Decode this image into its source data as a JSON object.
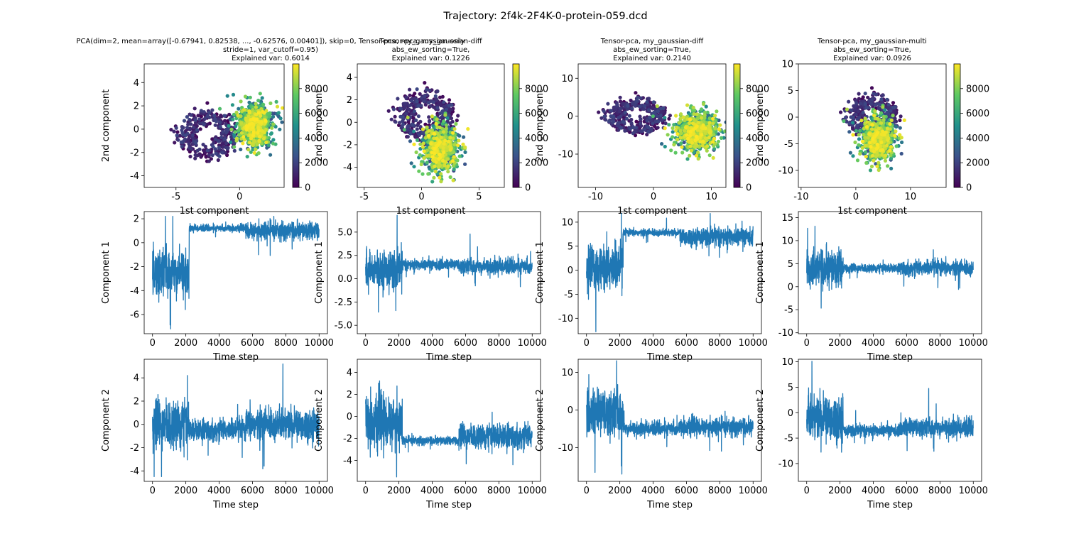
{
  "suptitle": "Trajectory: 2f4k-2F4K-0-protein-059.dcd",
  "colorbar": {
    "ticks": [
      "0",
      "2000",
      "4000",
      "6000",
      "8000"
    ],
    "range": [
      0,
      9999
    ],
    "colormap": "viridis",
    "colors": [
      "#440154",
      "#3b528b",
      "#21918c",
      "#5ec962",
      "#fde725"
    ]
  },
  "series_color": "#1f77b4",
  "columns": [
    {
      "title_lines": [
        "PCA(dim=2, mean=array([-0.67941,  0.82538, ..., -0.62576,  0.00401]), skip=0, Tensor-pca, my_gaussian-only",
        "stride=1, var_cutoff=0.95)",
        "Explained var: 0.6014"
      ],
      "scatter": {
        "xlabel": "1st component",
        "ylabel": "2nd component",
        "xlim": [
          -7.5,
          3.5
        ],
        "ylim": [
          -5,
          5.6
        ],
        "xticks": [
          "-5",
          "0"
        ],
        "yticks": [
          "-4",
          "-2",
          "0",
          "2",
          "4"
        ],
        "xtick_values": [
          -5,
          0
        ],
        "ytick_values": [
          -4,
          -2,
          0,
          2,
          4
        ]
      },
      "comp1": {
        "ylabel": "Component 1",
        "ylim": [
          -7.6,
          2.6
        ],
        "yticks": [
          "-6",
          "-4",
          "-2",
          "0",
          "2"
        ],
        "ytick_values": [
          -6,
          -4,
          -2,
          0,
          2
        ]
      },
      "comp2": {
        "ylabel": "Component 2",
        "ylim": [
          -4.9,
          5.6
        ],
        "yticks": [
          "-4",
          "-2",
          "0",
          "2",
          "4"
        ],
        "ytick_values": [
          -4,
          -2,
          0,
          2,
          4
        ]
      }
    },
    {
      "title_lines": [
        "Tensor-pca, my_gaussian-diff",
        "abs_ew_sorting=True,",
        "Explained var: 0.1226"
      ],
      "scatter": {
        "xlabel": "1st component",
        "ylabel": "2nd component",
        "xlim": [
          -5.6,
          7.2
        ],
        "ylim": [
          -5.8,
          5.2
        ],
        "xticks": [
          "-5",
          "0",
          "5"
        ],
        "yticks": [
          "-4",
          "-2",
          "0",
          "2",
          "4"
        ],
        "xtick_values": [
          -5,
          0,
          5
        ],
        "ytick_values": [
          -4,
          -2,
          0,
          2,
          4
        ]
      },
      "comp1": {
        "ylabel": "Component 1",
        "ylim": [
          -5.9,
          7.2
        ],
        "yticks": [
          "-5.0",
          "-2.5",
          "0.0",
          "2.5",
          "5.0"
        ],
        "ytick_values": [
          -5,
          -2.5,
          0,
          2.5,
          5
        ]
      },
      "comp2": {
        "ylabel": "Component 2",
        "ylim": [
          -5.9,
          5.2
        ],
        "yticks": [
          "-4",
          "-2",
          "0",
          "2",
          "4"
        ],
        "ytick_values": [
          -4,
          -2,
          0,
          2,
          4
        ]
      }
    },
    {
      "title_lines": [
        "Tensor-pca, my_gaussian-diff",
        "abs_ew_sorting=True,",
        "Explained var: 0.2140"
      ],
      "scatter": {
        "xlabel": "1st component",
        "ylabel": "2nd component",
        "xlim": [
          -13,
          12.5
        ],
        "ylim": [
          -18.8,
          13.8
        ],
        "xticks": [
          "-10",
          "0",
          "10"
        ],
        "yticks": [
          "-10",
          "0",
          "10"
        ],
        "xtick_values": [
          -10,
          0,
          10
        ],
        "ytick_values": [
          -10,
          0,
          10
        ]
      },
      "comp1": {
        "ylabel": "Component 1",
        "ylim": [
          -13.2,
          12.2
        ],
        "yticks": [
          "-10",
          "-5",
          "0",
          "5",
          "10"
        ],
        "ytick_values": [
          -10,
          -5,
          0,
          5,
          10
        ]
      },
      "comp2": {
        "ylabel": "Component 2",
        "ylim": [
          -19,
          13.5
        ],
        "yticks": [
          "-10",
          "0",
          "10"
        ],
        "ytick_values": [
          -10,
          0,
          10
        ]
      }
    },
    {
      "title_lines": [
        "Tensor-pca, my_gaussian-multi",
        "abs_ew_sorting=True,",
        "Explained var: 0.0926"
      ],
      "scatter": {
        "xlabel": "1st component",
        "ylabel": "2nd component",
        "xlim": [
          -10.5,
          16.5
        ],
        "ylim": [
          -13.2,
          10
        ],
        "xticks": [
          "-10",
          "0",
          "10"
        ],
        "yticks": [
          "-10",
          "-5",
          "0",
          "5",
          "10"
        ],
        "xtick_values": [
          -10,
          0,
          10
        ],
        "ytick_values": [
          -10,
          -5,
          0,
          5,
          10
        ]
      },
      "comp1": {
        "ylabel": "Component 1",
        "ylim": [
          -10.2,
          16.3
        ],
        "yticks": [
          "-10",
          "-5",
          "0",
          "5",
          "10",
          "15"
        ],
        "ytick_values": [
          -10,
          -5,
          0,
          5,
          10,
          15
        ]
      },
      "comp2": {
        "ylabel": "Component 2",
        "ylim": [
          -13.5,
          10.5
        ],
        "yticks": [
          "-10",
          "-5",
          "0",
          "5",
          "10"
        ],
        "ytick_values": [
          -10,
          -5,
          0,
          5,
          10
        ]
      }
    }
  ],
  "time_axis": {
    "xlabel": "Time step",
    "xticks": [
      "0",
      "2000",
      "4000",
      "6000",
      "8000",
      "10000"
    ],
    "xtick_values": [
      0,
      2000,
      4000,
      6000,
      8000,
      10000
    ],
    "xlim": [
      -500,
      10500
    ]
  },
  "chart_data": [
    {
      "type": "scatter",
      "panel": "pca-scatter",
      "title": "Explained var: 0.6014",
      "xlabel": "1st component",
      "ylabel": "2nd component",
      "xlim": [
        -7.5,
        3.5
      ],
      "ylim": [
        -5,
        5.6
      ],
      "color_by": "time step (0–9999)",
      "clusters": [
        {
          "center": [
            -2.5,
            -0.5
          ],
          "spread": 2.0,
          "time_range": [
            0,
            2200
          ]
        },
        {
          "center": [
            1.2,
            0.3
          ],
          "spread": 0.8,
          "time_range": [
            2200,
            10000
          ]
        }
      ]
    },
    {
      "type": "scatter",
      "panel": "tensor-pca-diff-scatter",
      "title": "Explained var: 0.1226",
      "xlabel": "1st component",
      "ylabel": "2nd component",
      "xlim": [
        -5.6,
        7.2
      ],
      "ylim": [
        -5.8,
        5.2
      ],
      "color_by": "time step (0–9999)",
      "clusters": [
        {
          "center": [
            0.3,
            0.5
          ],
          "spread": 2.2,
          "time_range": [
            0,
            2200
          ]
        },
        {
          "center": [
            1.6,
            -2.3
          ],
          "spread": 0.9,
          "time_range": [
            2200,
            10000
          ]
        }
      ]
    },
    {
      "type": "scatter",
      "panel": "tensor-pca-diff2-scatter",
      "title": "Explained var: 0.2140",
      "xlabel": "1st component",
      "ylabel": "2nd component",
      "xlim": [
        -13,
        12.5
      ],
      "ylim": [
        -18.8,
        13.8
      ],
      "color_by": "time step (0–9999)",
      "clusters": [
        {
          "center": [
            -3,
            0
          ],
          "spread": 4.5,
          "time_range": [
            0,
            2200
          ]
        },
        {
          "center": [
            7.5,
            -4
          ],
          "spread": 2.2,
          "time_range": [
            2200,
            10000
          ]
        }
      ]
    },
    {
      "type": "scatter",
      "panel": "tensor-pca-multi-scatter",
      "title": "Explained var: 0.0926",
      "xlabel": "1st component",
      "ylabel": "2nd component",
      "xlim": [
        -10.5,
        16.5
      ],
      "ylim": [
        -13.2,
        10
      ],
      "color_by": "time step (0–9999)",
      "clusters": [
        {
          "center": [
            3,
            0
          ],
          "spread": 4.0,
          "time_range": [
            0,
            2200
          ]
        },
        {
          "center": [
            4,
            -4
          ],
          "spread": 1.8,
          "time_range": [
            2200,
            10000
          ]
        }
      ]
    },
    {
      "type": "line",
      "panel": "component-1-traces",
      "xlabel": "Time step",
      "ylabel": "Component 1",
      "x_range": [
        0,
        10000
      ],
      "series": [
        {
          "segments": [
            {
              "from": 0,
              "to": 2200,
              "mean": -2.5,
              "amp": 2.2
            },
            {
              "from": 2200,
              "to": 5600,
              "mean": 1.2,
              "amp": 0.3
            },
            {
              "from": 5600,
              "to": 10000,
              "mean": 1.0,
              "amp": 0.8
            }
          ]
        },
        {
          "segments": [
            {
              "from": 0,
              "to": 2200,
              "mean": 1.0,
              "amp": 2.2
            },
            {
              "from": 2200,
              "to": 5600,
              "mean": 1.5,
              "amp": 0.6
            },
            {
              "from": 5600,
              "to": 10000,
              "mean": 1.3,
              "amp": 0.9
            }
          ]
        },
        {
          "segments": [
            {
              "from": 0,
              "to": 2200,
              "mean": 0.5,
              "amp": 5.5
            },
            {
              "from": 2200,
              "to": 5600,
              "mean": 7.8,
              "amp": 0.8
            },
            {
              "from": 5600,
              "to": 10000,
              "mean": 7.0,
              "amp": 2.0
            }
          ]
        },
        {
          "segments": [
            {
              "from": 0,
              "to": 2200,
              "mean": 4.0,
              "amp": 4.5
            },
            {
              "from": 2200,
              "to": 5600,
              "mean": 4.0,
              "amp": 1.0
            },
            {
              "from": 5600,
              "to": 10000,
              "mean": 4.0,
              "amp": 1.8
            }
          ]
        }
      ]
    },
    {
      "type": "line",
      "panel": "component-2-traces",
      "xlabel": "Time step",
      "ylabel": "Component 2",
      "x_range": [
        0,
        10000
      ],
      "series": [
        {
          "segments": [
            {
              "from": 0,
              "to": 2200,
              "mean": 0.0,
              "amp": 2.3
            },
            {
              "from": 2200,
              "to": 5600,
              "mean": -0.5,
              "amp": 1.0
            },
            {
              "from": 5600,
              "to": 10000,
              "mean": 0.0,
              "amp": 1.5
            }
          ]
        },
        {
          "segments": [
            {
              "from": 0,
              "to": 2200,
              "mean": -0.5,
              "amp": 2.6
            },
            {
              "from": 2200,
              "to": 5600,
              "mean": -2.2,
              "amp": 0.4
            },
            {
              "from": 5600,
              "to": 10000,
              "mean": -1.8,
              "amp": 1.2
            }
          ]
        },
        {
          "segments": [
            {
              "from": 0,
              "to": 2200,
              "mean": -1.0,
              "amp": 7.0
            },
            {
              "from": 2200,
              "to": 5600,
              "mean": -5.0,
              "amp": 2.0
            },
            {
              "from": 5600,
              "to": 10000,
              "mean": -4.5,
              "amp": 2.5
            }
          ]
        },
        {
          "segments": [
            {
              "from": 0,
              "to": 2200,
              "mean": -1.0,
              "amp": 5.0
            },
            {
              "from": 2200,
              "to": 5600,
              "mean": -3.5,
              "amp": 1.2
            },
            {
              "from": 5600,
              "to": 10000,
              "mean": -3.0,
              "amp": 2.0
            }
          ]
        }
      ]
    }
  ]
}
